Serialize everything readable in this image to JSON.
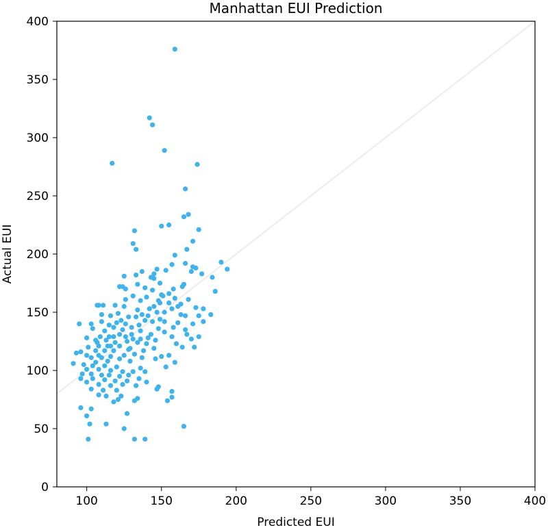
{
  "chart_data": {
    "type": "scatter",
    "title": "Manhattan EUI Prediction",
    "xlabel": "Predicted EUI",
    "ylabel": "Actual EUI",
    "xlim": [
      80,
      400
    ],
    "ylim": [
      0,
      400
    ],
    "xticks": [
      100,
      150,
      200,
      250,
      300,
      350,
      400
    ],
    "yticks": [
      0,
      50,
      100,
      150,
      200,
      250,
      300,
      350,
      400
    ],
    "grid": false,
    "point_color": "#3fb3ec",
    "reference_line": {
      "from": [
        80,
        80
      ],
      "to": [
        400,
        400
      ],
      "color": "#ececec"
    },
    "points": [
      [
        159,
        376
      ],
      [
        142,
        317
      ],
      [
        144,
        311
      ],
      [
        152,
        289
      ],
      [
        117,
        278
      ],
      [
        174,
        277
      ],
      [
        166,
        256
      ],
      [
        168,
        234
      ],
      [
        165,
        232
      ],
      [
        155,
        225
      ],
      [
        150,
        224
      ],
      [
        175,
        221
      ],
      [
        132,
        220
      ],
      [
        171,
        211
      ],
      [
        131,
        209
      ],
      [
        167,
        204
      ],
      [
        133,
        204
      ],
      [
        159,
        199
      ],
      [
        190,
        193
      ],
      [
        157,
        191
      ],
      [
        166,
        192
      ],
      [
        171,
        189
      ],
      [
        173,
        188
      ],
      [
        194,
        187
      ],
      [
        170,
        185
      ],
      [
        147,
        187
      ],
      [
        177,
        183
      ],
      [
        153,
        186
      ],
      [
        137,
        185
      ],
      [
        145,
        183
      ],
      [
        133,
        182
      ],
      [
        125,
        181
      ],
      [
        143,
        180
      ],
      [
        145,
        179
      ],
      [
        184,
        180
      ],
      [
        149,
        175
      ],
      [
        165,
        174
      ],
      [
        122,
        172
      ],
      [
        134,
        174
      ],
      [
        124,
        172
      ],
      [
        139,
        171
      ],
      [
        126,
        170
      ],
      [
        164,
        172
      ],
      [
        158,
        170
      ],
      [
        144,
        169
      ],
      [
        155,
        166
      ],
      [
        186,
        168
      ],
      [
        131,
        164
      ],
      [
        150,
        165
      ],
      [
        151,
        164
      ],
      [
        159,
        162
      ],
      [
        168,
        161
      ],
      [
        148,
        160
      ],
      [
        140,
        163
      ],
      [
        126,
        161
      ],
      [
        149,
        158
      ],
      [
        155,
        158
      ],
      [
        136,
        160
      ],
      [
        145,
        155
      ],
      [
        163,
        157
      ],
      [
        125,
        155
      ],
      [
        119,
        156
      ],
      [
        108,
        156
      ],
      [
        111,
        156
      ],
      [
        134,
        152
      ],
      [
        142,
        153
      ],
      [
        152,
        150
      ],
      [
        161,
        155
      ],
      [
        173,
        154
      ],
      [
        178,
        153
      ],
      [
        183,
        148
      ],
      [
        147,
        150
      ],
      [
        121,
        149
      ],
      [
        137,
        148
      ],
      [
        141,
        147
      ],
      [
        157,
        153
      ],
      [
        163,
        148
      ],
      [
        166,
        147
      ],
      [
        175,
        147
      ],
      [
        116,
        147
      ],
      [
        110,
        148
      ],
      [
        128,
        146
      ],
      [
        133,
        146
      ],
      [
        149,
        144
      ],
      [
        123,
        143
      ],
      [
        152,
        142
      ],
      [
        120,
        141
      ],
      [
        139,
        143
      ],
      [
        144,
        142
      ],
      [
        161,
        141
      ],
      [
        178,
        142
      ],
      [
        103,
        140
      ],
      [
        95,
        140
      ],
      [
        115,
        139
      ],
      [
        135,
        139
      ],
      [
        171,
        140
      ],
      [
        118,
        137
      ],
      [
        130,
        137
      ],
      [
        158,
        137
      ],
      [
        124,
        135
      ],
      [
        148,
        136
      ],
      [
        166,
        135
      ],
      [
        104,
        136
      ],
      [
        112,
        134
      ],
      [
        136,
        134
      ],
      [
        152,
        133
      ],
      [
        167,
        131
      ],
      [
        122,
        131
      ],
      [
        130,
        131
      ],
      [
        143,
        131
      ],
      [
        118,
        129
      ],
      [
        126,
        129
      ],
      [
        109,
        129
      ],
      [
        157,
        129
      ],
      [
        175,
        129
      ],
      [
        136,
        127
      ],
      [
        146,
        126
      ],
      [
        170,
        127
      ],
      [
        100,
        128
      ],
      [
        113,
        126
      ],
      [
        127,
        125
      ],
      [
        107,
        124
      ],
      [
        119,
        124
      ],
      [
        134,
        124
      ],
      [
        140,
        123
      ],
      [
        160,
        123
      ],
      [
        108,
        121
      ],
      [
        114,
        121
      ],
      [
        122,
        121
      ],
      [
        129,
        119
      ],
      [
        145,
        119
      ],
      [
        164,
        120
      ],
      [
        172,
        120
      ],
      [
        96,
        116
      ],
      [
        106,
        117
      ],
      [
        112,
        117
      ],
      [
        118,
        117
      ],
      [
        138,
        117
      ],
      [
        100,
        113
      ],
      [
        108,
        113
      ],
      [
        116,
        112
      ],
      [
        125,
        113
      ],
      [
        132,
        114
      ],
      [
        150,
        112
      ],
      [
        155,
        113
      ],
      [
        93,
        115
      ],
      [
        103,
        111
      ],
      [
        110,
        111
      ],
      [
        122,
        110
      ],
      [
        137,
        111
      ],
      [
        146,
        110
      ],
      [
        106,
        107
      ],
      [
        114,
        108
      ],
      [
        129,
        108
      ],
      [
        159,
        107
      ],
      [
        91,
        106
      ],
      [
        98,
        105
      ],
      [
        104,
        104
      ],
      [
        112,
        104
      ],
      [
        120,
        103
      ],
      [
        136,
        102
      ],
      [
        153,
        103
      ],
      [
        100,
        101
      ],
      [
        108,
        101
      ],
      [
        116,
        100
      ],
      [
        124,
        99
      ],
      [
        131,
        99
      ],
      [
        139,
        99
      ],
      [
        97,
        97
      ],
      [
        103,
        97
      ],
      [
        110,
        96
      ],
      [
        115,
        96
      ],
      [
        122,
        95
      ],
      [
        128,
        96
      ],
      [
        135,
        93
      ],
      [
        96,
        93
      ],
      [
        104,
        93
      ],
      [
        112,
        92
      ],
      [
        119,
        91
      ],
      [
        127,
        91
      ],
      [
        140,
        90
      ],
      [
        100,
        90
      ],
      [
        108,
        88
      ],
      [
        116,
        87
      ],
      [
        124,
        88
      ],
      [
        133,
        87
      ],
      [
        148,
        86
      ],
      [
        103,
        84
      ],
      [
        111,
        83
      ],
      [
        120,
        83
      ],
      [
        147,
        84
      ],
      [
        157,
        82
      ],
      [
        108,
        79
      ],
      [
        123,
        78
      ],
      [
        134,
        76
      ],
      [
        157,
        77
      ],
      [
        113,
        78
      ],
      [
        121,
        75
      ],
      [
        132,
        74
      ],
      [
        154,
        74
      ],
      [
        103,
        67
      ],
      [
        96,
        68
      ],
      [
        118,
        73
      ],
      [
        100,
        61
      ],
      [
        127,
        63
      ],
      [
        102,
        54
      ],
      [
        113,
        54
      ],
      [
        125,
        50
      ],
      [
        101,
        41
      ],
      [
        132,
        41
      ],
      [
        139,
        41
      ],
      [
        165,
        52
      ],
      [
        107,
        156
      ],
      [
        101,
        120
      ],
      [
        106,
        126
      ],
      [
        116,
        121
      ],
      [
        128,
        118
      ],
      [
        141,
        128
      ],
      [
        110,
        142
      ],
      [
        126,
        140
      ],
      [
        131,
        127
      ],
      [
        115,
        129
      ]
    ]
  }
}
